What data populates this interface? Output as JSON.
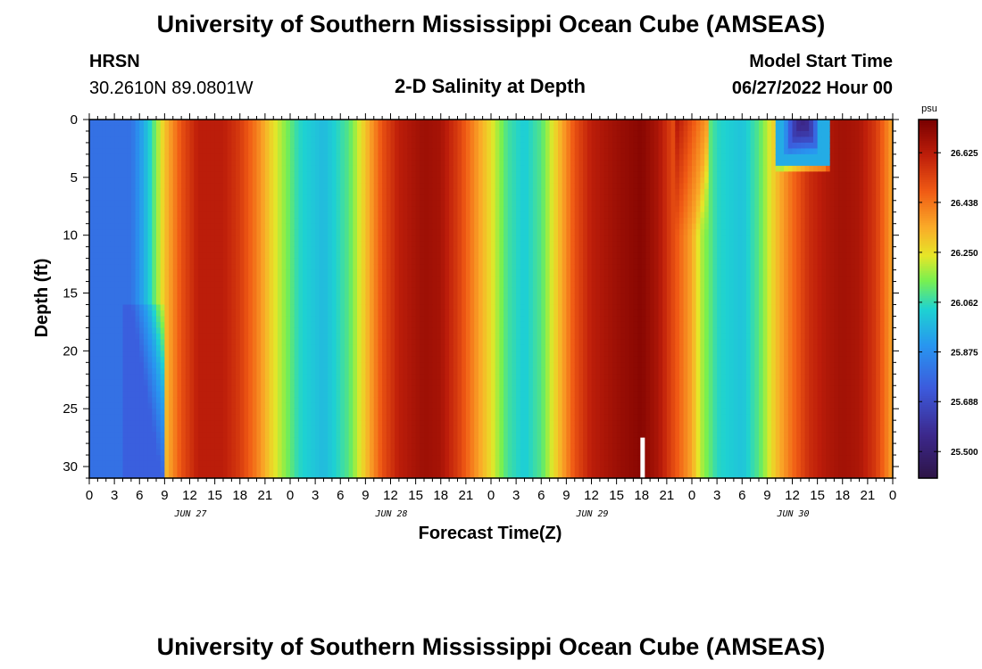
{
  "page": {
    "title": "University of Southern Mississippi Ocean Cube (AMSEAS)",
    "title_repeat": "University of Southern Mississippi Ocean Cube (AMSEAS)",
    "station_name": "HRSN",
    "station_coords": "30.2610N  89.0801W",
    "plot_title": "2-D Salinity at Depth",
    "model_start_label": "Model Start Time",
    "model_start_value": "06/27/2022 Hour 00"
  },
  "chart_data": {
    "type": "heatmap",
    "title": "2-D Salinity at Depth",
    "xlabel": "Forecast Time(Z)",
    "ylabel": "Depth (ft)",
    "x_range_hours": [
      0,
      96
    ],
    "y_range_ft": [
      0,
      31
    ],
    "x_ticks": [
      {
        "h": 0,
        "label": "0"
      },
      {
        "h": 3,
        "label": "3"
      },
      {
        "h": 6,
        "label": "6"
      },
      {
        "h": 9,
        "label": "9"
      },
      {
        "h": 12,
        "label": "12"
      },
      {
        "h": 15,
        "label": "15"
      },
      {
        "h": 18,
        "label": "18"
      },
      {
        "h": 21,
        "label": "21"
      },
      {
        "h": 24,
        "label": "0"
      },
      {
        "h": 27,
        "label": "3"
      },
      {
        "h": 30,
        "label": "6"
      },
      {
        "h": 33,
        "label": "9"
      },
      {
        "h": 36,
        "label": "12"
      },
      {
        "h": 39,
        "label": "15"
      },
      {
        "h": 42,
        "label": "18"
      },
      {
        "h": 45,
        "label": "21"
      },
      {
        "h": 48,
        "label": "0"
      },
      {
        "h": 51,
        "label": "3"
      },
      {
        "h": 54,
        "label": "6"
      },
      {
        "h": 57,
        "label": "9"
      },
      {
        "h": 60,
        "label": "12"
      },
      {
        "h": 63,
        "label": "15"
      },
      {
        "h": 66,
        "label": "18"
      },
      {
        "h": 69,
        "label": "21"
      },
      {
        "h": 72,
        "label": "0"
      },
      {
        "h": 75,
        "label": "3"
      },
      {
        "h": 78,
        "label": "6"
      },
      {
        "h": 81,
        "label": "9"
      },
      {
        "h": 84,
        "label": "12"
      },
      {
        "h": 87,
        "label": "15"
      },
      {
        "h": 90,
        "label": "18"
      },
      {
        "h": 93,
        "label": "21"
      },
      {
        "h": 96,
        "label": "0"
      }
    ],
    "date_labels": [
      {
        "h": 12,
        "label": "JUN 27"
      },
      {
        "h": 36,
        "label": "JUN 28"
      },
      {
        "h": 60,
        "label": "JUN 29"
      },
      {
        "h": 84,
        "label": "JUN 30"
      }
    ],
    "y_ticks": [
      {
        "v": 0,
        "label": "0"
      },
      {
        "v": 5,
        "label": "5"
      },
      {
        "v": 10,
        "label": "10"
      },
      {
        "v": 15,
        "label": "15"
      },
      {
        "v": 20,
        "label": "20"
      },
      {
        "v": 25,
        "label": "25"
      },
      {
        "v": 30,
        "label": "30"
      }
    ],
    "colorbar": {
      "unit": "psu",
      "range": [
        25.4,
        26.75
      ],
      "ticks": [
        {
          "v": 26.625,
          "label": "26.625"
        },
        {
          "v": 26.438,
          "label": "26.438"
        },
        {
          "v": 26.25,
          "label": "26.250"
        },
        {
          "v": 26.062,
          "label": "26.062"
        },
        {
          "v": 25.875,
          "label": "25.875"
        },
        {
          "v": 25.688,
          "label": "25.688"
        },
        {
          "v": 25.5,
          "label": "25.500"
        }
      ]
    },
    "salinity_keypoints": [
      {
        "h": 0,
        "psu": 25.8
      },
      {
        "h": 5,
        "psu": 25.8
      },
      {
        "h": 7,
        "psu": 26.0
      },
      {
        "h": 9,
        "psu": 26.3
      },
      {
        "h": 11,
        "psu": 26.5
      },
      {
        "h": 13,
        "psu": 26.62
      },
      {
        "h": 16,
        "psu": 26.62
      },
      {
        "h": 18,
        "psu": 26.55
      },
      {
        "h": 20,
        "psu": 26.42
      },
      {
        "h": 22,
        "psu": 26.25
      },
      {
        "h": 25,
        "psu": 26.05
      },
      {
        "h": 28,
        "psu": 25.98
      },
      {
        "h": 31,
        "psu": 26.1
      },
      {
        "h": 33,
        "psu": 26.3
      },
      {
        "h": 35,
        "psu": 26.5
      },
      {
        "h": 37,
        "psu": 26.62
      },
      {
        "h": 40,
        "psu": 26.68
      },
      {
        "h": 42,
        "psu": 26.66
      },
      {
        "h": 44,
        "psu": 26.55
      },
      {
        "h": 46,
        "psu": 26.4
      },
      {
        "h": 48,
        "psu": 26.25
      },
      {
        "h": 50,
        "psu": 26.08
      },
      {
        "h": 52,
        "psu": 26.02
      },
      {
        "h": 54,
        "psu": 26.1
      },
      {
        "h": 56,
        "psu": 26.3
      },
      {
        "h": 58,
        "psu": 26.5
      },
      {
        "h": 60,
        "psu": 26.62
      },
      {
        "h": 63,
        "psu": 26.68
      },
      {
        "h": 66,
        "psu": 26.72
      },
      {
        "h": 68,
        "psu": 26.65
      },
      {
        "h": 70,
        "psu": 26.5
      },
      {
        "h": 72,
        "psu": 26.35
      },
      {
        "h": 73,
        "psu": 26.2
      },
      {
        "h": 75,
        "psu": 26.05
      },
      {
        "h": 78,
        "psu": 26.0
      },
      {
        "h": 80,
        "psu": 26.1
      },
      {
        "h": 82,
        "psu": 26.3
      },
      {
        "h": 84,
        "psu": 26.45
      },
      {
        "h": 86,
        "psu": 26.58
      },
      {
        "h": 88,
        "psu": 26.64
      },
      {
        "h": 90,
        "psu": 26.67
      },
      {
        "h": 92,
        "psu": 26.65
      },
      {
        "h": 94,
        "psu": 26.55
      },
      {
        "h": 96,
        "psu": 26.35
      }
    ],
    "surface_fresh_pocket": {
      "h_start": 82,
      "h_end": 88.5,
      "depth_max_ft": 4.5,
      "psu_min": 25.55
    }
  }
}
